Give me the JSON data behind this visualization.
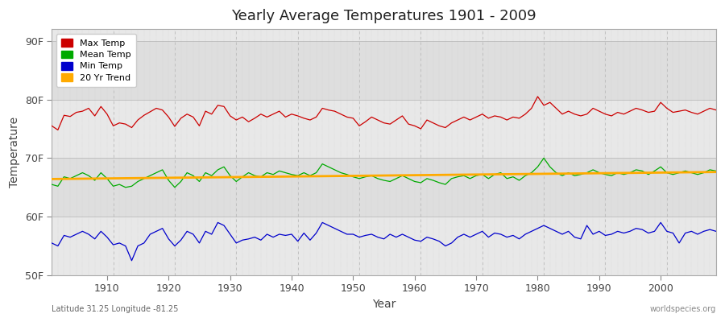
{
  "title": "Yearly Average Temperatures 1901 - 2009",
  "xlabel": "Year",
  "ylabel": "Temperature",
  "x_start": 1901,
  "x_end": 2009,
  "yticks": [
    50,
    60,
    70,
    80,
    90
  ],
  "ytick_labels": [
    "50F",
    "60F",
    "70F",
    "80F",
    "90F"
  ],
  "ylim": [
    50,
    92
  ],
  "xlim": [
    1901,
    2009
  ],
  "bg_color": "#ffffff",
  "plot_bg_color": "#e8e8e8",
  "band_light": "#ebebeb",
  "band_dark": "#e0e0e0",
  "grid_color": "#cccccc",
  "max_temp_color": "#cc0000",
  "mean_temp_color": "#00aa00",
  "min_temp_color": "#0000cc",
  "trend_color": "#ffaa00",
  "legend_labels": [
    "Max Temp",
    "Mean Temp",
    "Min Temp",
    "20 Yr Trend"
  ],
  "lat_lon_text": "Latitude 31.25 Longitude -81.25",
  "watermark": "worldspecies.org",
  "max_temps": [
    75.5,
    74.8,
    77.3,
    77.1,
    77.8,
    78.0,
    78.5,
    77.2,
    78.8,
    77.5,
    75.5,
    76.0,
    75.8,
    75.2,
    76.5,
    77.3,
    77.9,
    78.5,
    78.2,
    77.0,
    75.4,
    76.8,
    77.5,
    77.0,
    75.5,
    78.0,
    77.5,
    79.0,
    78.8,
    77.2,
    76.5,
    77.0,
    76.2,
    76.8,
    77.5,
    77.0,
    77.5,
    78.0,
    77.0,
    77.5,
    77.2,
    76.8,
    76.5,
    77.0,
    78.5,
    78.2,
    78.0,
    77.5,
    77.0,
    76.8,
    75.5,
    76.2,
    77.0,
    76.5,
    76.0,
    75.8,
    76.5,
    77.2,
    75.8,
    75.5,
    75.0,
    76.5,
    76.0,
    75.5,
    75.2,
    76.0,
    76.5,
    77.0,
    76.5,
    77.0,
    77.5,
    76.8,
    77.2,
    77.0,
    76.5,
    77.0,
    76.8,
    77.5,
    78.5,
    80.5,
    79.0,
    79.5,
    78.5,
    77.5,
    78.0,
    77.5,
    77.2,
    77.5,
    78.5,
    78.0,
    77.5,
    77.2,
    77.8,
    77.5,
    78.0,
    78.5,
    78.2,
    77.8,
    78.0,
    79.5,
    78.5,
    77.8,
    78.0,
    78.2,
    77.8,
    77.5,
    78.0,
    78.5,
    78.2
  ],
  "mean_temps": [
    65.5,
    65.2,
    66.8,
    66.5,
    67.0,
    67.5,
    67.0,
    66.2,
    67.5,
    66.5,
    65.2,
    65.5,
    65.0,
    65.2,
    66.0,
    66.5,
    67.0,
    67.5,
    68.0,
    66.2,
    65.0,
    66.0,
    67.5,
    67.0,
    66.0,
    67.5,
    67.0,
    68.0,
    68.5,
    67.0,
    66.0,
    66.8,
    67.5,
    67.0,
    66.8,
    67.5,
    67.2,
    67.8,
    67.5,
    67.2,
    67.0,
    67.5,
    67.0,
    67.5,
    69.0,
    68.5,
    68.0,
    67.5,
    67.2,
    66.8,
    66.5,
    66.8,
    67.0,
    66.5,
    66.2,
    66.0,
    66.5,
    67.0,
    66.5,
    66.0,
    65.8,
    66.5,
    66.2,
    65.8,
    65.5,
    66.5,
    66.8,
    67.0,
    66.5,
    67.0,
    67.2,
    66.5,
    67.2,
    67.5,
    66.5,
    66.8,
    66.2,
    67.0,
    67.5,
    68.5,
    70.0,
    68.5,
    67.5,
    67.0,
    67.5,
    67.0,
    67.2,
    67.5,
    68.0,
    67.5,
    67.2,
    67.0,
    67.5,
    67.2,
    67.5,
    68.0,
    67.8,
    67.2,
    67.8,
    68.5,
    67.5,
    67.2,
    67.5,
    67.8,
    67.5,
    67.2,
    67.5,
    68.0,
    67.8
  ],
  "min_temps": [
    55.5,
    55.0,
    56.8,
    56.5,
    57.0,
    57.5,
    57.0,
    56.2,
    57.5,
    56.5,
    55.2,
    55.5,
    55.0,
    52.5,
    55.0,
    55.5,
    57.0,
    57.5,
    58.0,
    56.2,
    55.0,
    56.0,
    57.5,
    57.0,
    55.5,
    57.5,
    57.0,
    59.0,
    58.5,
    57.0,
    55.5,
    56.0,
    56.2,
    56.5,
    56.0,
    57.0,
    56.5,
    57.0,
    56.8,
    57.0,
    55.8,
    57.2,
    56.0,
    57.2,
    59.0,
    58.5,
    58.0,
    57.5,
    57.0,
    57.0,
    56.5,
    56.8,
    57.0,
    56.5,
    56.2,
    57.0,
    56.5,
    57.0,
    56.5,
    56.0,
    55.8,
    56.5,
    56.2,
    55.8,
    55.0,
    55.5,
    56.5,
    57.0,
    56.5,
    57.0,
    57.5,
    56.5,
    57.2,
    57.0,
    56.5,
    56.8,
    56.2,
    57.0,
    57.5,
    58.0,
    58.5,
    58.0,
    57.5,
    57.0,
    57.5,
    56.5,
    56.2,
    58.5,
    57.0,
    57.5,
    56.8,
    57.0,
    57.5,
    57.2,
    57.5,
    58.0,
    57.8,
    57.2,
    57.5,
    59.0,
    57.5,
    57.2,
    55.5,
    57.2,
    57.5,
    57.0,
    57.5,
    57.8,
    57.5
  ]
}
